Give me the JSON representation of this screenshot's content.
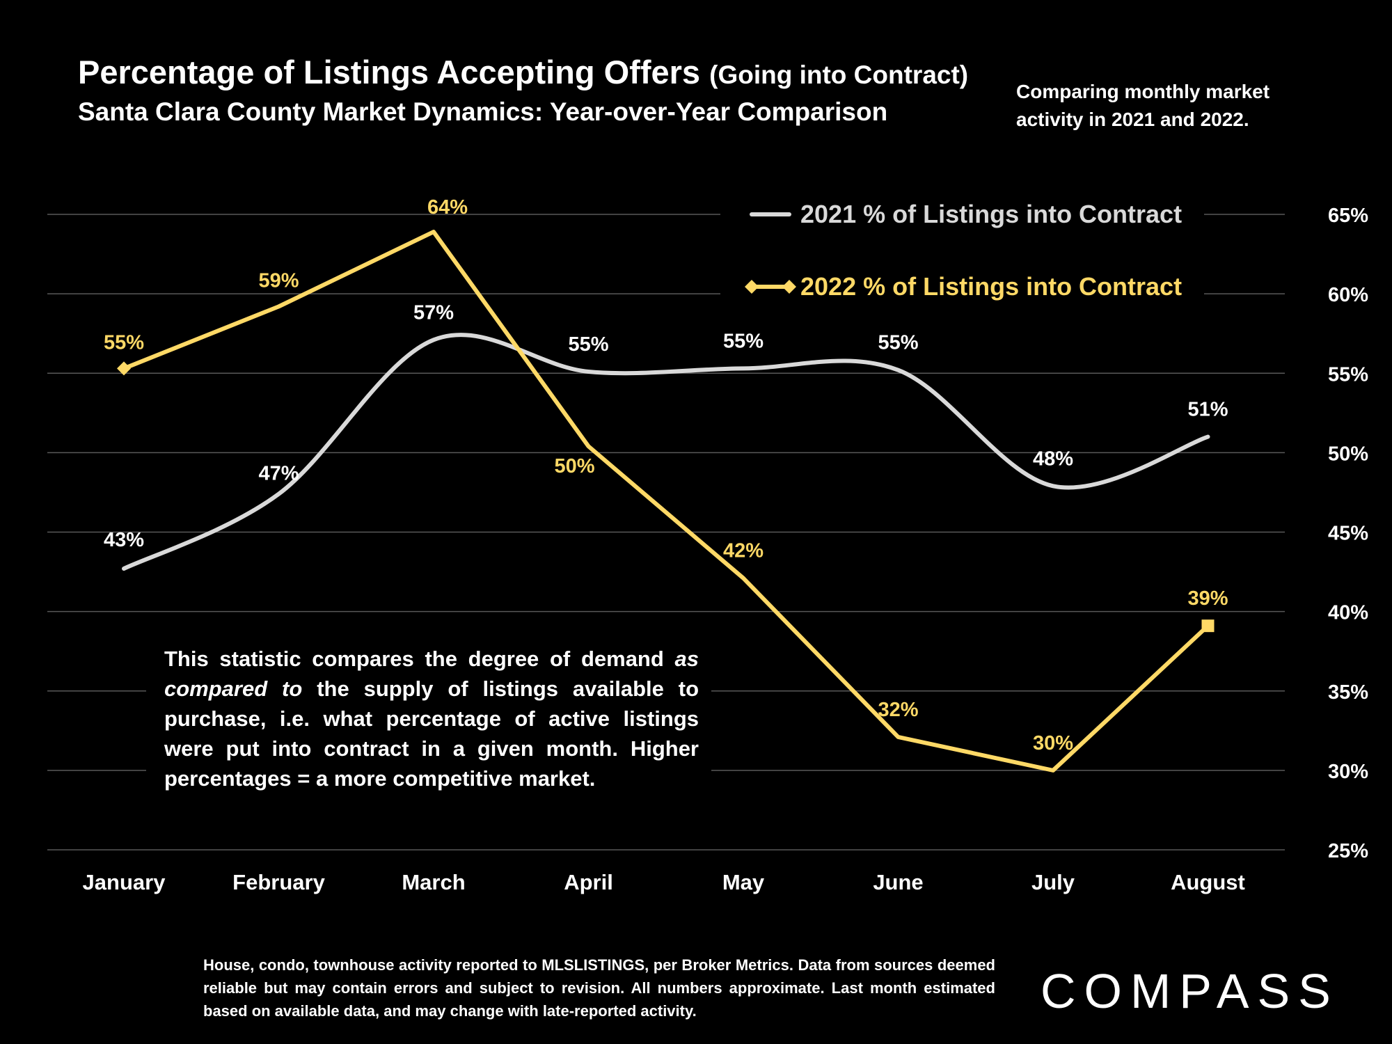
{
  "title": "Percentage of Listings Accepting Offers",
  "title_suffix": "(Going into Contract)",
  "subtitle": "Santa Clara County Market Dynamics: Year-over-Year Comparison",
  "note": "Comparing monthly market activity in 2021 and 2022.",
  "description": {
    "part1": "This statistic compares the degree of demand ",
    "emphasis": "as compared to",
    "part2": " the supply of listings available to purchase, i.e. what percentage of active listings were put into contract in a given month. Higher percentages = a more competitive market."
  },
  "footer": "House, condo, townhouse activity reported to MLSLISTINGS, per Broker Metrics. Data from sources deemed reliable but may contain errors and subject to revision. All numbers approximate. Last month estimated based on available data, and may change with late-reported activity.",
  "logo_text": "COMPASS",
  "colors": {
    "series_2021": "#d9d9d9",
    "series_2022": "#ffd966",
    "grid": "#595959",
    "background": "#000000"
  },
  "chart_data": {
    "type": "line",
    "categories": [
      "January",
      "February",
      "March",
      "April",
      "May",
      "June",
      "July",
      "August"
    ],
    "series": [
      {
        "name": "2021 % of Listings into Contract",
        "values": [
          42.7,
          47.4,
          57.1,
          55.1,
          55.3,
          55.2,
          47.9,
          51.0
        ],
        "labels": [
          "43%",
          "47%",
          "57%",
          "55%",
          "55%",
          "55%",
          "48%",
          "51%"
        ],
        "smooth": true
      },
      {
        "name": "2022 % of Listings into Contract",
        "values": [
          55.3,
          59.2,
          63.9,
          50.4,
          42.1,
          32.1,
          30.0,
          39.1
        ],
        "labels": [
          "55%",
          "59%",
          "64%",
          "50%",
          "42%",
          "32%",
          "30%",
          "39%"
        ],
        "smooth": false
      }
    ],
    "y_ticks": [
      "25%",
      "30%",
      "35%",
      "40%",
      "45%",
      "50%",
      "55%",
      "60%",
      "65%"
    ],
    "ylim": [
      25,
      65
    ],
    "y_axis_side": "right",
    "grid": true,
    "legend_position": "top-right"
  }
}
